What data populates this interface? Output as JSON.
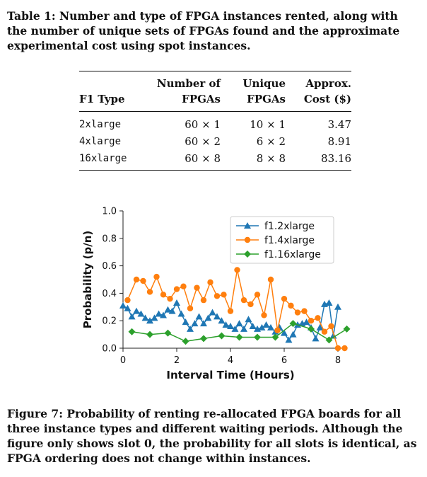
{
  "table_caption": "Table 1: Number and type of FPGA instances rented, along with the number of unique sets of FPGAs found and the approximate experimental cost using spot instances.",
  "table": {
    "headers": {
      "type": [
        "",
        "F1 Type"
      ],
      "number": [
        "Number of",
        "FPGAs"
      ],
      "unique": [
        "Unique",
        "FPGAs"
      ],
      "cost": [
        "Approx.",
        "Cost ($)"
      ]
    },
    "rows": [
      {
        "type": "2xlarge",
        "number": "60 × 1",
        "unique": "10 × 1",
        "cost": "3.47"
      },
      {
        "type": "4xlarge",
        "number": "60 × 2",
        "unique": "6 × 2",
        "cost": "8.91"
      },
      {
        "type": "16xlarge",
        "number": "60 × 8",
        "unique": "8 × 8",
        "cost": "83.16"
      }
    ]
  },
  "chart_data": {
    "type": "line",
    "xlabel": "Interval Time (Hours)",
    "ylabel": "Probability (p/n)",
    "xlim": [
      0,
      8
    ],
    "ylim": [
      0,
      1.0
    ],
    "xticks": [
      "0",
      "2",
      "4",
      "6",
      "8"
    ],
    "yticks": [
      "0.0",
      "0.2",
      "0.4",
      "0.6",
      "0.8",
      "1.0"
    ],
    "legend_position": "top-right",
    "series": [
      {
        "name": "f1.2xlarge",
        "color": "#1f77b4",
        "marker": "triangle",
        "points": [
          [
            0.0,
            0.31
          ],
          [
            0.17,
            0.29
          ],
          [
            0.33,
            0.23
          ],
          [
            0.5,
            0.27
          ],
          [
            0.67,
            0.25
          ],
          [
            0.83,
            0.22
          ],
          [
            1.0,
            0.2
          ],
          [
            1.17,
            0.22
          ],
          [
            1.33,
            0.25
          ],
          [
            1.5,
            0.24
          ],
          [
            1.67,
            0.28
          ],
          [
            1.83,
            0.27
          ],
          [
            2.0,
            0.33
          ],
          [
            2.17,
            0.25
          ],
          [
            2.33,
            0.19
          ],
          [
            2.5,
            0.14
          ],
          [
            2.67,
            0.18
          ],
          [
            2.83,
            0.23
          ],
          [
            3.0,
            0.18
          ],
          [
            3.17,
            0.22
          ],
          [
            3.33,
            0.26
          ],
          [
            3.5,
            0.23
          ],
          [
            3.67,
            0.2
          ],
          [
            3.83,
            0.17
          ],
          [
            4.0,
            0.16
          ],
          [
            4.17,
            0.14
          ],
          [
            4.33,
            0.18
          ],
          [
            4.5,
            0.14
          ],
          [
            4.67,
            0.21
          ],
          [
            4.83,
            0.16
          ],
          [
            5.0,
            0.14
          ],
          [
            5.17,
            0.15
          ],
          [
            5.33,
            0.17
          ],
          [
            5.5,
            0.15
          ],
          [
            5.67,
            0.12
          ],
          [
            5.83,
            0.15
          ],
          [
            6.0,
            0.11
          ],
          [
            6.17,
            0.06
          ],
          [
            6.33,
            0.1
          ],
          [
            6.5,
            0.17
          ],
          [
            6.67,
            0.18
          ],
          [
            6.83,
            0.19
          ],
          [
            7.0,
            0.15
          ],
          [
            7.17,
            0.07
          ],
          [
            7.33,
            0.15
          ],
          [
            7.5,
            0.32
          ],
          [
            7.67,
            0.33
          ],
          [
            7.83,
            0.09
          ],
          [
            8.0,
            0.3
          ]
        ]
      },
      {
        "name": "f1.4xlarge",
        "color": "#ff7f0e",
        "marker": "circle",
        "points": [
          [
            0.17,
            0.35
          ],
          [
            0.5,
            0.5
          ],
          [
            0.75,
            0.49
          ],
          [
            1.0,
            0.41
          ],
          [
            1.25,
            0.52
          ],
          [
            1.5,
            0.39
          ],
          [
            1.75,
            0.36
          ],
          [
            2.0,
            0.43
          ],
          [
            2.25,
            0.45
          ],
          [
            2.5,
            0.29
          ],
          [
            2.75,
            0.44
          ],
          [
            3.0,
            0.35
          ],
          [
            3.25,
            0.48
          ],
          [
            3.5,
            0.38
          ],
          [
            3.75,
            0.39
          ],
          [
            4.0,
            0.27
          ],
          [
            4.25,
            0.57
          ],
          [
            4.5,
            0.35
          ],
          [
            4.75,
            0.32
          ],
          [
            5.0,
            0.39
          ],
          [
            5.25,
            0.24
          ],
          [
            5.5,
            0.5
          ],
          [
            5.75,
            0.13
          ],
          [
            6.0,
            0.36
          ],
          [
            6.25,
            0.31
          ],
          [
            6.5,
            0.26
          ],
          [
            6.75,
            0.27
          ],
          [
            7.0,
            0.2
          ],
          [
            7.25,
            0.22
          ],
          [
            7.5,
            0.12
          ],
          [
            7.75,
            0.16
          ],
          [
            8.0,
            0.0
          ],
          [
            8.25,
            0.0
          ]
        ]
      },
      {
        "name": "f1.16xlarge",
        "color": "#2ca02c",
        "marker": "diamond",
        "points": [
          [
            0.33,
            0.12
          ],
          [
            1.0,
            0.1
          ],
          [
            1.67,
            0.11
          ],
          [
            2.33,
            0.05
          ],
          [
            3.0,
            0.07
          ],
          [
            3.67,
            0.09
          ],
          [
            4.33,
            0.08
          ],
          [
            5.0,
            0.08
          ],
          [
            5.67,
            0.08
          ],
          [
            6.33,
            0.18
          ],
          [
            7.0,
            0.14
          ],
          [
            7.67,
            0.06
          ],
          [
            8.33,
            0.14
          ]
        ]
      }
    ]
  },
  "figure_caption": "Figure 7: Probability of renting re-allocated FPGA boards for all three instance types and different waiting periods. Although the figure only shows slot 0, the probability for all slots is identical, as FPGA ordering does not change within instances."
}
